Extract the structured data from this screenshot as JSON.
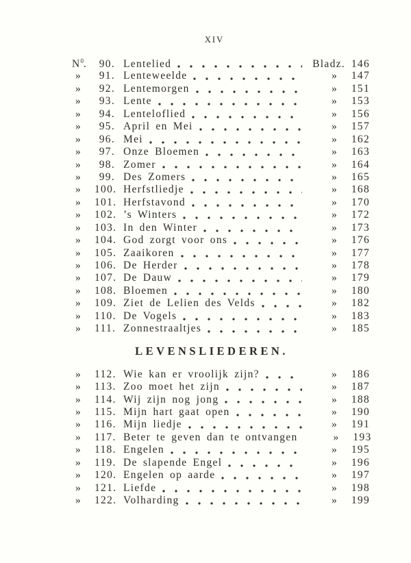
{
  "colors": {
    "ink": "#312d28",
    "paper": "#fefefb"
  },
  "page": {
    "header": "XIV",
    "section_heading": "LEVENSLIEDEREN."
  },
  "part1": [
    {
      "m": "N",
      "msup": "0",
      "mdot": ".",
      "n": "90.",
      "t": "Lentelied",
      "r": "Bladz.",
      "p": "146"
    },
    {
      "m": "»",
      "n": "91.",
      "t": "Lenteweelde",
      "r": "»",
      "p": "147"
    },
    {
      "m": "»",
      "n": "92.",
      "t": "Lentemorgen",
      "r": "»",
      "p": "151"
    },
    {
      "m": "»",
      "n": "93.",
      "t": "Lente",
      "r": "»",
      "p": "153"
    },
    {
      "m": "»",
      "n": "94.",
      "t": "Lenteloflied",
      "r": "»",
      "p": "156"
    },
    {
      "m": "»",
      "n": "95.",
      "t": "April en Mei",
      "r": "»",
      "p": "157"
    },
    {
      "m": "»",
      "n": "96.",
      "t": "Mei",
      "r": "»",
      "p": "162"
    },
    {
      "m": "»",
      "n": "97.",
      "t": "Onze Bloemen",
      "r": "»",
      "p": "163"
    },
    {
      "m": "»",
      "n": "98.",
      "t": "Zomer",
      "r": "»",
      "p": "164"
    },
    {
      "m": "»",
      "n": "99.",
      "t": "Des Zomers",
      "r": "»",
      "p": "165"
    },
    {
      "m": "»",
      "n": "100.",
      "t": "Herfstliedje",
      "r": "»",
      "p": "168"
    },
    {
      "m": "»",
      "n": "101.",
      "t": "Herfstavond",
      "r": "»",
      "p": "170"
    },
    {
      "m": "»",
      "n": "102.",
      "t": "’s Winters",
      "r": "»",
      "p": "172"
    },
    {
      "m": "»",
      "n": "103.",
      "t": "In den Winter",
      "r": "»",
      "p": "173"
    },
    {
      "m": "»",
      "n": "104.",
      "t": "God zorgt voor ons",
      "r": "»",
      "p": "176"
    },
    {
      "m": "»",
      "n": "105.",
      "t": "Zaaikoren",
      "r": "»",
      "p": "177"
    },
    {
      "m": "»",
      "n": "106.",
      "t": "De Herder",
      "r": "»",
      "p": "178"
    },
    {
      "m": "»",
      "n": "107.",
      "t": "De Dauw",
      "r": "»",
      "p": "179"
    },
    {
      "m": "»",
      "n": "108.",
      "t": "Bloemen",
      "r": "»",
      "p": "180"
    },
    {
      "m": "»",
      "n": "109.",
      "t": "Ziet de Lelien des Velds",
      "r": "»",
      "p": "182"
    },
    {
      "m": "»",
      "n": "110.",
      "t": "De Vogels",
      "r": "»",
      "p": "183"
    },
    {
      "m": "»",
      "n": "111.",
      "t": "Zonnestraaltjes",
      "r": "»",
      "p": "185"
    }
  ],
  "part2": [
    {
      "m": "»",
      "n": "112.",
      "t": "Wie kan er vroolijk zijn?",
      "r": "»",
      "p": "186"
    },
    {
      "m": "»",
      "n": "113.",
      "t": "Zoo moet het zijn",
      "r": "»",
      "p": "187"
    },
    {
      "m": "»",
      "n": "114.",
      "t": "Wij zijn nog jong",
      "r": "»",
      "p": "188"
    },
    {
      "m": "»",
      "n": "115.",
      "t": "Mijn hart gaat open",
      "r": "»",
      "p": "190"
    },
    {
      "m": "»",
      "n": "116.",
      "t": "Mijn liedje",
      "r": "»",
      "p": "191"
    },
    {
      "m": "»",
      "n": "117.",
      "t": "Beter te geven dan te ontvangen",
      "r": "»",
      "p": "193"
    },
    {
      "m": "»",
      "n": "118.",
      "t": "Engelen",
      "r": "»",
      "p": "195"
    },
    {
      "m": "»",
      "n": "119.",
      "t": "De slapende Engel",
      "r": "»",
      "p": "196"
    },
    {
      "m": "»",
      "n": "120.",
      "t": "Engelen op aarde",
      "r": "»",
      "p": "197"
    },
    {
      "m": "»",
      "n": "121.",
      "t": "Liefde",
      "r": "»",
      "p": "198"
    },
    {
      "m": "»",
      "n": "122.",
      "t": "Volharding",
      "r": "»",
      "p": "199"
    }
  ]
}
